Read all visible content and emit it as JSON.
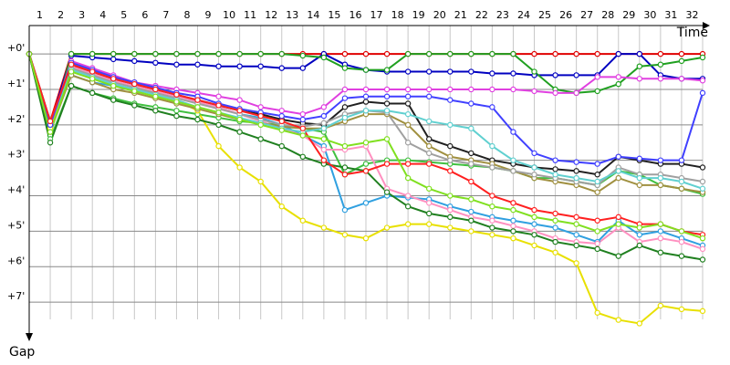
{
  "chart_data": {
    "type": "line",
    "x_label": "Time",
    "y_label": "Gap",
    "x": [
      0,
      1,
      2,
      3,
      4,
      5,
      6,
      7,
      8,
      9,
      10,
      11,
      12,
      13,
      14,
      15,
      16,
      17,
      18,
      19,
      20,
      21,
      22,
      23,
      24,
      25,
      26,
      27,
      28,
      29,
      30,
      31,
      32
    ],
    "xlim": [
      0,
      32
    ],
    "xticks": [
      {
        "value": 0.5,
        "label": "1"
      },
      {
        "value": 1.5,
        "label": "2"
      },
      {
        "value": 2.5,
        "label": "3"
      },
      {
        "value": 3.5,
        "label": "4"
      },
      {
        "value": 4.5,
        "label": "5"
      },
      {
        "value": 5.5,
        "label": "6"
      },
      {
        "value": 6.5,
        "label": "7"
      },
      {
        "value": 7.5,
        "label": "8"
      },
      {
        "value": 8.5,
        "label": "9"
      },
      {
        "value": 9.5,
        "label": "10"
      },
      {
        "value": 10.5,
        "label": "11"
      },
      {
        "value": 11.5,
        "label": "12"
      },
      {
        "value": 12.5,
        "label": "13"
      },
      {
        "value": 13.5,
        "label": "14"
      },
      {
        "value": 14.5,
        "label": "15"
      },
      {
        "value": 15.5,
        "label": "16"
      },
      {
        "value": 16.5,
        "label": "17"
      },
      {
        "value": 17.5,
        "label": "18"
      },
      {
        "value": 18.5,
        "label": "19"
      },
      {
        "value": 19.5,
        "label": "20"
      },
      {
        "value": 20.5,
        "label": "21"
      },
      {
        "value": 21.5,
        "label": "22"
      },
      {
        "value": 22.5,
        "label": "23"
      },
      {
        "value": 23.5,
        "label": "24"
      },
      {
        "value": 24.5,
        "label": "25"
      },
      {
        "value": 25.5,
        "label": "26"
      },
      {
        "value": 26.5,
        "label": "27"
      },
      {
        "value": 27.5,
        "label": "28"
      },
      {
        "value": 28.5,
        "label": "29"
      },
      {
        "value": 29.5,
        "label": "30"
      },
      {
        "value": 30.5,
        "label": "31"
      },
      {
        "value": 31.5,
        "label": "32"
      }
    ],
    "ylim": [
      -0.8,
      8
    ],
    "y_inverted": true,
    "yticks": [
      {
        "value": 0,
        "label": "+0'"
      },
      {
        "value": 1,
        "label": "+1'"
      },
      {
        "value": 2,
        "label": "+2'"
      },
      {
        "value": 3,
        "label": "+3'"
      },
      {
        "value": 4,
        "label": "+4'"
      },
      {
        "value": 5,
        "label": "+5'"
      },
      {
        "value": 6,
        "label": "+6'"
      },
      {
        "value": 7,
        "label": "+7'"
      }
    ],
    "grid": true,
    "series": [
      {
        "color": "#e00000",
        "values": [
          0,
          1.9,
          0,
          0,
          0,
          0,
          0,
          0,
          0,
          0,
          0,
          0,
          0,
          0,
          0,
          0,
          0,
          0,
          0,
          0,
          0,
          0,
          0,
          0,
          0,
          0,
          0,
          0,
          0,
          0,
          0,
          0,
          0
        ]
      },
      {
        "color": "#0000c0",
        "values": [
          0,
          2.0,
          0.05,
          0.1,
          0.15,
          0.2,
          0.25,
          0.3,
          0.3,
          0.35,
          0.35,
          0.35,
          0.4,
          0.4,
          0,
          0.3,
          0.45,
          0.5,
          0.5,
          0.5,
          0.5,
          0.5,
          0.55,
          0.55,
          0.6,
          0.6,
          0.6,
          0.6,
          0,
          0,
          0.6,
          0.7,
          0.7
        ]
      },
      {
        "color": "#20a020",
        "values": [
          0,
          2.3,
          0,
          0,
          0,
          0,
          0,
          0,
          0,
          0,
          0,
          0,
          0,
          0.05,
          0.1,
          0.4,
          0.45,
          0.45,
          0,
          0,
          0,
          0,
          0,
          0,
          0.5,
          1.0,
          1.1,
          1.05,
          0.85,
          0.35,
          0.3,
          0.2,
          0.1
        ]
      },
      {
        "color": "#40c040",
        "values": [
          0,
          2.4,
          0.9,
          1.1,
          1.25,
          1.4,
          1.5,
          1.6,
          1.7,
          1.8,
          1.9,
          1.95,
          2.0,
          2.1,
          2.2,
          3.4,
          3.1,
          3.0,
          3.0,
          3.05,
          3.1,
          3.15,
          3.2,
          3.3,
          3.5,
          3.5,
          3.6,
          3.7,
          3.3,
          3.4,
          3.7,
          3.8,
          3.95
        ]
      },
      {
        "color": "#30a0e0",
        "values": [
          0,
          1.9,
          0.6,
          0.8,
          0.9,
          1.0,
          1.1,
          1.2,
          1.35,
          1.5,
          1.7,
          1.8,
          2.0,
          2.3,
          2.6,
          4.4,
          4.2,
          4.0,
          4.05,
          4.1,
          4.3,
          4.45,
          4.6,
          4.7,
          4.8,
          4.9,
          5.1,
          5.3,
          4.7,
          5.1,
          5.0,
          5.2,
          5.4
        ]
      },
      {
        "color": "#e8e000",
        "values": [
          0,
          2.1,
          0.3,
          0.5,
          0.7,
          0.9,
          1.1,
          1.3,
          1.6,
          2.6,
          3.2,
          3.6,
          4.3,
          4.7,
          4.9,
          5.1,
          5.2,
          4.9,
          4.8,
          4.8,
          4.9,
          5.0,
          5.1,
          5.2,
          5.4,
          5.6,
          5.9,
          7.3,
          7.5,
          7.6,
          7.1,
          7.2,
          7.25
        ]
      },
      {
        "color": "#e040e0",
        "values": [
          0,
          2.0,
          0.2,
          0.4,
          0.6,
          0.8,
          0.9,
          1.0,
          1.1,
          1.2,
          1.3,
          1.5,
          1.6,
          1.7,
          1.5,
          1.0,
          1.0,
          1.0,
          1.0,
          1.0,
          1.0,
          1.0,
          1.0,
          1.0,
          1.05,
          1.1,
          1.1,
          0.65,
          0.65,
          0.7,
          0.7,
          0.7,
          0.75
        ]
      },
      {
        "color": "#ff90c0",
        "values": [
          0,
          1.95,
          0.35,
          0.55,
          0.75,
          0.9,
          1.05,
          1.2,
          1.35,
          1.5,
          1.7,
          1.9,
          2.1,
          2.3,
          2.7,
          2.7,
          2.6,
          3.8,
          4.0,
          4.2,
          4.4,
          4.6,
          4.7,
          4.85,
          5.0,
          5.2,
          5.3,
          5.35,
          4.9,
          5.3,
          5.2,
          5.3,
          5.5
        ]
      },
      {
        "color": "#202020",
        "values": [
          0,
          2.0,
          0.3,
          0.5,
          0.7,
          0.85,
          1.0,
          1.15,
          1.3,
          1.45,
          1.6,
          1.7,
          1.85,
          1.95,
          2.0,
          1.5,
          1.35,
          1.4,
          1.4,
          2.4,
          2.6,
          2.8,
          3.0,
          3.1,
          3.2,
          3.25,
          3.3,
          3.4,
          2.9,
          3.0,
          3.1,
          3.1,
          3.2
        ]
      },
      {
        "color": "#a09040",
        "values": [
          0,
          2.2,
          0.6,
          0.8,
          1.0,
          1.1,
          1.25,
          1.4,
          1.55,
          1.7,
          1.85,
          1.95,
          2.05,
          2.1,
          2.1,
          1.9,
          1.7,
          1.7,
          2.0,
          2.6,
          2.9,
          3.0,
          3.1,
          3.3,
          3.5,
          3.6,
          3.7,
          3.9,
          3.5,
          3.7,
          3.7,
          3.8,
          3.9
        ]
      },
      {
        "color": "#a0a0a0",
        "values": [
          0,
          2.0,
          0.4,
          0.6,
          0.8,
          0.95,
          1.1,
          1.25,
          1.4,
          1.55,
          1.7,
          1.85,
          2.0,
          2.05,
          1.95,
          1.7,
          1.6,
          1.65,
          2.5,
          2.8,
          3.0,
          3.1,
          3.2,
          3.3,
          3.4,
          3.5,
          3.6,
          3.7,
          3.2,
          3.4,
          3.4,
          3.5,
          3.6
        ]
      },
      {
        "color": "#60d0d0",
        "values": [
          0,
          1.95,
          0.45,
          0.65,
          0.85,
          1.0,
          1.15,
          1.3,
          1.5,
          1.65,
          1.8,
          1.95,
          2.1,
          2.2,
          2.1,
          1.8,
          1.6,
          1.6,
          1.7,
          1.9,
          2.0,
          2.1,
          2.6,
          3.0,
          3.2,
          3.4,
          3.5,
          3.6,
          3.3,
          3.5,
          3.5,
          3.6,
          3.8
        ]
      },
      {
        "color": "#208020",
        "values": [
          0,
          2.5,
          0.9,
          1.1,
          1.3,
          1.45,
          1.6,
          1.75,
          1.85,
          2.0,
          2.2,
          2.4,
          2.6,
          2.9,
          3.1,
          3.2,
          3.3,
          3.9,
          4.3,
          4.5,
          4.6,
          4.7,
          4.9,
          5.0,
          5.1,
          5.3,
          5.4,
          5.5,
          5.7,
          5.4,
          5.6,
          5.7,
          5.8
        ]
      },
      {
        "color": "#4040ff",
        "values": [
          0,
          2.0,
          0.25,
          0.45,
          0.65,
          0.8,
          0.95,
          1.1,
          1.2,
          1.4,
          1.55,
          1.65,
          1.75,
          1.85,
          1.75,
          1.25,
          1.2,
          1.2,
          1.2,
          1.2,
          1.3,
          1.4,
          1.5,
          2.2,
          2.8,
          3.0,
          3.05,
          3.1,
          2.9,
          2.95,
          3.0,
          3.0,
          1.1
        ]
      },
      {
        "color": "#ff2020",
        "values": [
          0,
          1.9,
          0.3,
          0.5,
          0.7,
          0.85,
          1.0,
          1.15,
          1.3,
          1.45,
          1.6,
          1.75,
          1.9,
          2.1,
          3.0,
          3.4,
          3.3,
          3.1,
          3.1,
          3.1,
          3.3,
          3.6,
          4.0,
          4.2,
          4.4,
          4.5,
          4.6,
          4.7,
          4.6,
          4.8,
          4.8,
          5.0,
          5.1
        ]
      },
      {
        "color": "#80e020",
        "values": [
          0,
          2.2,
          0.5,
          0.7,
          0.9,
          1.05,
          1.2,
          1.35,
          1.5,
          1.65,
          1.85,
          2.0,
          2.15,
          2.3,
          2.4,
          2.6,
          2.5,
          2.4,
          3.5,
          3.8,
          4.0,
          4.1,
          4.3,
          4.4,
          4.6,
          4.7,
          4.8,
          5.0,
          4.8,
          4.9,
          4.8,
          5.0,
          5.2
        ]
      }
    ]
  }
}
